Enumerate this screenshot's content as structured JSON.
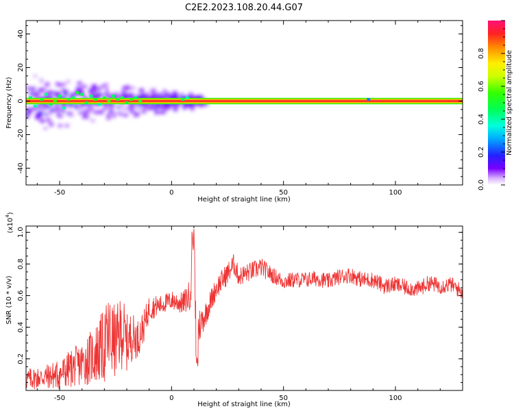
{
  "title": "C2E2.2023.108.20.44.G07",
  "colorbar": {
    "label": "Normalized spectral amplitude",
    "ticks": [
      "0.0",
      "0.2",
      "0.4",
      "0.6",
      "0.8"
    ],
    "tick_values": [
      0.0,
      0.2,
      0.4,
      0.6,
      0.8
    ],
    "range": [
      0,
      1
    ]
  },
  "chart_data": [
    {
      "type": "heatmap",
      "xlabel": "Height of straight line (km)",
      "ylabel": "Frequency (Hz)",
      "xlim": [
        -65,
        130
      ],
      "ylim": [
        -50,
        48
      ],
      "xticks": [
        -50,
        0,
        50,
        100
      ],
      "yticks": [
        -40,
        -20,
        0,
        20,
        40
      ],
      "xtick_labels": [
        "-50",
        "0",
        "50",
        "100"
      ],
      "ytick_labels": [
        "-40",
        "-20",
        "0",
        "20",
        "40"
      ],
      "band": {
        "x": [
          -65,
          130
        ],
        "y_center": 0,
        "y_halfwidth": 1.5,
        "amplitude": 1.0
      },
      "scatter": [
        {
          "x": -63,
          "y": 2,
          "a": 0.45
        },
        {
          "x": -61,
          "y": -3,
          "a": 0.4
        },
        {
          "x": -58,
          "y": 1,
          "a": 0.5
        },
        {
          "x": -56,
          "y": 4,
          "a": 0.42
        },
        {
          "x": -54,
          "y": -2,
          "a": 0.48
        },
        {
          "x": -52,
          "y": 0,
          "a": 0.55
        },
        {
          "x": -50,
          "y": 3,
          "a": 0.45
        },
        {
          "x": -48,
          "y": -4,
          "a": 0.4
        },
        {
          "x": -46,
          "y": 1,
          "a": 0.52
        },
        {
          "x": -44,
          "y": 2,
          "a": 0.45
        },
        {
          "x": -42,
          "y": 5,
          "a": 0.5
        },
        {
          "x": -40,
          "y": 4,
          "a": 0.46
        },
        {
          "x": -38,
          "y": -1,
          "a": 0.48
        },
        {
          "x": -36,
          "y": 3,
          "a": 0.44
        },
        {
          "x": -34,
          "y": 1,
          "a": 0.55
        },
        {
          "x": -32,
          "y": -2,
          "a": 0.4
        },
        {
          "x": -30,
          "y": 2,
          "a": 0.5
        },
        {
          "x": -28,
          "y": 0,
          "a": 0.55
        },
        {
          "x": -26,
          "y": 3,
          "a": 0.45
        },
        {
          "x": -24,
          "y": 1,
          "a": 0.52
        },
        {
          "x": -22,
          "y": 2,
          "a": 0.48
        },
        {
          "x": -20,
          "y": -1,
          "a": 0.5
        },
        {
          "x": -18,
          "y": 1,
          "a": 0.55
        },
        {
          "x": -16,
          "y": 2,
          "a": 0.45
        },
        {
          "x": -14,
          "y": 0,
          "a": 0.5
        },
        {
          "x": 5,
          "y": 1,
          "a": 0.45
        },
        {
          "x": 7,
          "y": 2,
          "a": 0.4
        },
        {
          "x": 88,
          "y": 1,
          "a": 0.25
        }
      ],
      "haze": {
        "x_range": [
          -65,
          15
        ],
        "y_halfwidth_start": 16,
        "y_halfwidth_end": 3
      }
    },
    {
      "type": "line",
      "xlabel": "Height of straight line (km)",
      "ylabel": "SNR (10 * v/v)",
      "y_scale_label": "(x10",
      "y_scale_exponent": "4",
      "y_scale_close": ")",
      "xlim": [
        -65,
        130
      ],
      "ylim": [
        0,
        1.04
      ],
      "xticks": [
        -50,
        0,
        50,
        100
      ],
      "yticks": [
        0.2,
        0.4,
        0.6,
        0.8,
        1.0
      ],
      "xtick_labels": [
        "-50",
        "0",
        "50",
        "100"
      ],
      "ytick_labels": [
        "0.2",
        "0.4",
        "0.6",
        "0.8",
        "1.0"
      ],
      "color": "#ee3333",
      "series": [
        {
          "x": [
            -65,
            -60,
            -55,
            -50,
            -45,
            -40,
            -35,
            -30,
            -28,
            -25,
            -22,
            -20,
            -18,
            -15,
            -12,
            -10,
            -5,
            0,
            5,
            8,
            10,
            11,
            12,
            15,
            20,
            25,
            28,
            30,
            35,
            40,
            45,
            50,
            55,
            60,
            65,
            70,
            75,
            80,
            85,
            90,
            95,
            100,
            105,
            110,
            115,
            120,
            125,
            130
          ],
          "y": [
            0.07,
            0.08,
            0.09,
            0.1,
            0.14,
            0.17,
            0.22,
            0.28,
            0.34,
            0.3,
            0.38,
            0.3,
            0.34,
            0.33,
            0.42,
            0.52,
            0.54,
            0.57,
            0.55,
            0.6,
            0.85,
            0.28,
            0.4,
            0.48,
            0.65,
            0.74,
            0.8,
            0.72,
            0.75,
            0.78,
            0.73,
            0.69,
            0.7,
            0.7,
            0.71,
            0.69,
            0.72,
            0.73,
            0.7,
            0.7,
            0.66,
            0.67,
            0.65,
            0.64,
            0.68,
            0.66,
            0.67,
            0.62
          ],
          "noise_envelope": [
            0.07,
            0.07,
            0.08,
            0.1,
            0.12,
            0.14,
            0.18,
            0.24,
            0.28,
            0.22,
            0.24,
            0.18,
            0.16,
            0.12,
            0.1,
            0.08,
            0.06,
            0.06,
            0.07,
            0.1,
            0.2,
            0.16,
            0.12,
            0.08,
            0.07,
            0.07,
            0.07,
            0.06,
            0.06,
            0.06,
            0.05,
            0.05,
            0.05,
            0.05,
            0.05,
            0.05,
            0.05,
            0.05,
            0.05,
            0.05,
            0.05,
            0.05,
            0.05,
            0.05,
            0.05,
            0.05,
            0.05,
            0.05
          ]
        }
      ]
    }
  ]
}
